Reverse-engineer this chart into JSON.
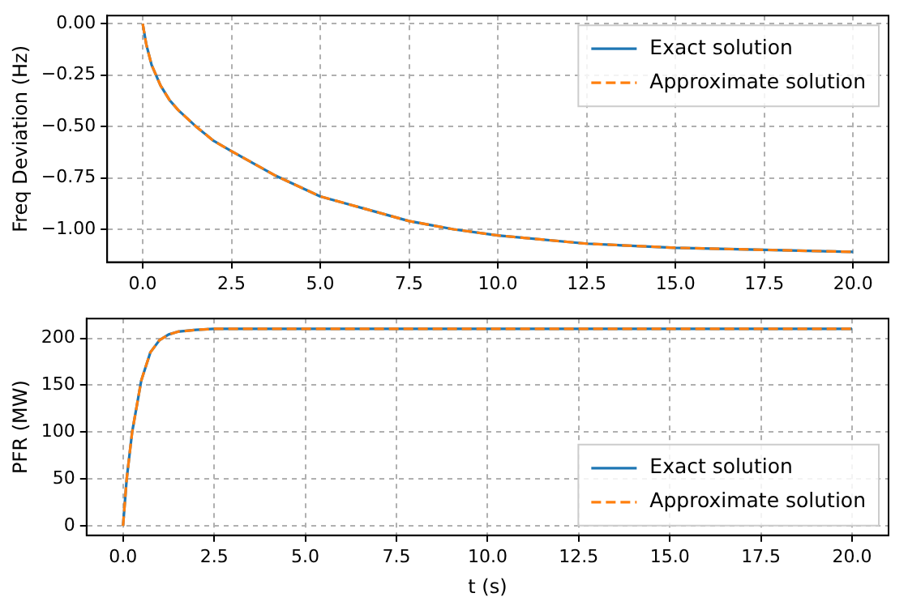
{
  "chart_data": [
    {
      "type": "line",
      "ylabel": "Freq Deviation (Hz)",
      "xlim": [
        -1,
        21
      ],
      "ylim": [
        -1.16,
        0.04
      ],
      "xticks": [
        {
          "value": 0,
          "label": "0.0"
        },
        {
          "value": 2.5,
          "label": "2.5"
        },
        {
          "value": 5,
          "label": "5.0"
        },
        {
          "value": 7.5,
          "label": "7.5"
        },
        {
          "value": 10,
          "label": "10.0"
        },
        {
          "value": 12.5,
          "label": "12.5"
        },
        {
          "value": 15,
          "label": "15.0"
        },
        {
          "value": 17.5,
          "label": "17.5"
        },
        {
          "value": 20,
          "label": "20.0"
        }
      ],
      "yticks": [
        {
          "value": 0,
          "label": "0.00"
        },
        {
          "value": -0.25,
          "label": "−0.25"
        },
        {
          "value": -0.5,
          "label": "−0.50"
        },
        {
          "value": -0.75,
          "label": "−0.75"
        },
        {
          "value": -1,
          "label": "−1.00"
        }
      ],
      "x": [
        0,
        0.1,
        0.25,
        0.5,
        0.75,
        1,
        1.5,
        2,
        2.5,
        3.75,
        5,
        6.25,
        7.5,
        8.75,
        10,
        12.5,
        15,
        17.5,
        20
      ],
      "series": [
        {
          "name": "Exact solution",
          "color": "#1f77b4",
          "line_style": "solid",
          "values": [
            0,
            -0.1,
            -0.2,
            -0.3,
            -0.37,
            -0.42,
            -0.5,
            -0.57,
            -0.62,
            -0.74,
            -0.84,
            -0.9,
            -0.96,
            -1.0,
            -1.03,
            -1.07,
            -1.09,
            -1.1,
            -1.11
          ]
        },
        {
          "name": "Approximate solution",
          "color": "#ff7f0e",
          "line_style": "dashed",
          "values": [
            0,
            -0.1,
            -0.2,
            -0.3,
            -0.37,
            -0.42,
            -0.5,
            -0.57,
            -0.62,
            -0.74,
            -0.84,
            -0.9,
            -0.96,
            -1.0,
            -1.03,
            -1.07,
            -1.09,
            -1.1,
            -1.11
          ]
        }
      ],
      "grid": true,
      "legend": "top right",
      "marker": "none"
    },
    {
      "type": "line",
      "ylabel": "PFR (MW)",
      "xlabel": "t (s)",
      "xlim": [
        -1,
        21
      ],
      "ylim": [
        -10,
        221
      ],
      "xticks": [
        {
          "value": 0,
          "label": "0.0"
        },
        {
          "value": 2.5,
          "label": "2.5"
        },
        {
          "value": 5,
          "label": "5.0"
        },
        {
          "value": 7.5,
          "label": "7.5"
        },
        {
          "value": 10,
          "label": "10.0"
        },
        {
          "value": 12.5,
          "label": "12.5"
        },
        {
          "value": 15,
          "label": "15.0"
        },
        {
          "value": 17.5,
          "label": "17.5"
        },
        {
          "value": 20,
          "label": "20.0"
        }
      ],
      "yticks": [
        0,
        50,
        100,
        150,
        200
      ],
      "x": [
        0,
        0.1,
        0.25,
        0.5,
        0.75,
        1,
        1.25,
        1.5,
        2,
        2.5,
        5,
        10,
        15,
        20
      ],
      "series": [
        {
          "name": "Exact solution",
          "color": "#1f77b4",
          "line_style": "solid",
          "values": [
            0,
            50,
            100,
            155,
            185,
            198,
            204,
            207,
            209,
            210,
            210,
            210,
            210,
            210
          ]
        },
        {
          "name": "Approximate solution",
          "color": "#ff7f0e",
          "line_style": "dashed",
          "values": [
            0,
            50,
            100,
            155,
            185,
            198,
            204,
            207,
            209,
            210,
            210,
            210,
            210,
            210
          ]
        }
      ],
      "grid": true,
      "legend": "bottom right",
      "marker": "none"
    }
  ]
}
